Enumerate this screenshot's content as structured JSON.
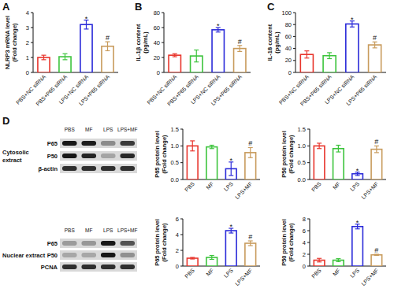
{
  "chart_data": [
    {
      "type": "bar",
      "panel_label": "A",
      "y_label": [
        "NLRP3 mRNA level",
        "(Fold change)"
      ],
      "categories": [
        "PBS+NC siRNA",
        "PBS+P65 siRNA",
        "LPS+NC siRNA",
        "LPS+P65 siRNA"
      ],
      "values": [
        1.0,
        1.05,
        3.2,
        1.75
      ],
      "errors": [
        0.15,
        0.2,
        0.3,
        0.3
      ],
      "colors": [
        "#e8352c",
        "#3cc43c",
        "#2b2bd9",
        "#c89b5c"
      ],
      "ylim": [
        0,
        4
      ],
      "yticks": [
        0,
        1,
        2,
        3,
        4
      ],
      "annotations": [
        {
          "category": "LPS+NC siRNA",
          "text": "*"
        },
        {
          "category": "LPS+P65 siRNA",
          "text": "#"
        }
      ]
    },
    {
      "type": "bar",
      "panel_label": "B",
      "y_label": [
        "IL-1β content",
        "(pg/mL)"
      ],
      "categories": [
        "PBS+NC siRNA",
        "PBS+P65 siRNA",
        "LPS+NC siRNA",
        "LPS+P65 siRNA"
      ],
      "values": [
        23,
        22,
        57,
        32
      ],
      "errors": [
        2,
        8,
        3,
        4
      ],
      "colors": [
        "#e8352c",
        "#3cc43c",
        "#2b2bd9",
        "#c89b5c"
      ],
      "ylim": [
        0,
        80
      ],
      "yticks": [
        0,
        20,
        40,
        60,
        80
      ],
      "annotations": [
        {
          "category": "LPS+NC siRNA",
          "text": "*"
        },
        {
          "category": "LPS+P65 siRNA",
          "text": "#"
        }
      ]
    },
    {
      "type": "bar",
      "panel_label": "C",
      "y_label": [
        "IL-18 content",
        "(pg/mL)"
      ],
      "categories": [
        "PBS+NC siRNA",
        "PBS+P65 siRNA",
        "LPS+NC siRNA",
        "LPS+P65 siRNA"
      ],
      "values": [
        30,
        28,
        81,
        46
      ],
      "errors": [
        6,
        5,
        5,
        5
      ],
      "colors": [
        "#e8352c",
        "#3cc43c",
        "#2b2bd9",
        "#c89b5c"
      ],
      "ylim": [
        0,
        100
      ],
      "yticks": [
        0,
        20,
        40,
        60,
        80,
        100
      ],
      "annotations": [
        {
          "category": "LPS+NC siRNA",
          "text": "*"
        },
        {
          "category": "LPS+P65 siRNA",
          "text": "#"
        }
      ]
    },
    {
      "type": "bar",
      "y_label": [
        "P65 protein level",
        "(Fold change)"
      ],
      "categories": [
        "PBS",
        "MF",
        "LPS",
        "LPS+MF"
      ],
      "values": [
        1.0,
        0.97,
        0.32,
        0.8
      ],
      "errors": [
        0.15,
        0.05,
        0.2,
        0.15
      ],
      "colors": [
        "#e8352c",
        "#3cc43c",
        "#2b2bd9",
        "#c89b5c"
      ],
      "ylim": [
        0,
        1.5
      ],
      "yticks": [
        {
          "value": 0,
          "label": "0.0"
        },
        0.5,
        {
          "value": 1,
          "label": "1.0"
        },
        1.5
      ],
      "annotations": [
        {
          "category": "LPS",
          "text": "*"
        },
        {
          "category": "LPS+MF",
          "text": "#"
        }
      ]
    },
    {
      "type": "bar",
      "y_label": [
        "P50 protein level",
        "(Fold change)"
      ],
      "categories": [
        "PBS",
        "MF",
        "LPS",
        "LPS+MF"
      ],
      "values": [
        1.0,
        0.92,
        0.17,
        0.9
      ],
      "errors": [
        0.08,
        0.1,
        0.05,
        0.1
      ],
      "colors": [
        "#e8352c",
        "#3cc43c",
        "#2b2bd9",
        "#c89b5c"
      ],
      "ylim": [
        0,
        1.5
      ],
      "yticks": [
        {
          "value": 0,
          "label": "0.0"
        },
        0.5,
        {
          "value": 1,
          "label": "1.0"
        },
        1.5
      ],
      "annotations": [
        {
          "category": "LPS",
          "text": "*"
        },
        {
          "category": "LPS+MF",
          "text": "#"
        }
      ]
    },
    {
      "type": "bar",
      "y_label": [
        "P65 protein level",
        "(Fold change)"
      ],
      "categories": [
        "PBS",
        "MF",
        "LPS",
        "LPS+MF"
      ],
      "values": [
        1.0,
        1.1,
        4.5,
        2.9
      ],
      "errors": [
        0.1,
        0.25,
        0.3,
        0.3
      ],
      "colors": [
        "#e8352c",
        "#3cc43c",
        "#2b2bd9",
        "#c89b5c"
      ],
      "ylim": [
        0,
        6
      ],
      "yticks": [
        0,
        2,
        4,
        6
      ],
      "annotations": [
        {
          "category": "LPS",
          "text": "*"
        },
        {
          "category": "LPS+MF",
          "text": "#"
        }
      ]
    },
    {
      "type": "bar",
      "y_label": [
        "P50 protein level",
        "(Fold change)"
      ],
      "categories": [
        "PBS",
        "MF",
        "LPS",
        "LPS+MF"
      ],
      "values": [
        1.0,
        1.0,
        6.7,
        1.9
      ],
      "errors": [
        0.3,
        0.25,
        0.4,
        0.1
      ],
      "colors": [
        "#e8352c",
        "#3cc43c",
        "#2b2bd9",
        "#c89b5c"
      ],
      "ylim": [
        0,
        8
      ],
      "yticks": [
        0,
        2,
        4,
        6,
        8
      ],
      "annotations": [
        {
          "category": "LPS",
          "text": "*"
        },
        {
          "category": "LPS+MF",
          "text": "#"
        }
      ]
    }
  ],
  "blots": [
    {
      "panel_label": "D",
      "title": [
        "Cytosolic",
        "extract"
      ],
      "columns": [
        "PBS",
        "MF",
        "LPS",
        "LPS+MF"
      ],
      "rows": [
        "P65",
        "P50",
        "β-actin"
      ]
    },
    {
      "title": [
        "Nuclear extract"
      ],
      "columns": [
        "PBS",
        "MF",
        "LPS",
        "LPS+MF"
      ],
      "rows": [
        "P65",
        "P50",
        "PCNA"
      ]
    }
  ]
}
